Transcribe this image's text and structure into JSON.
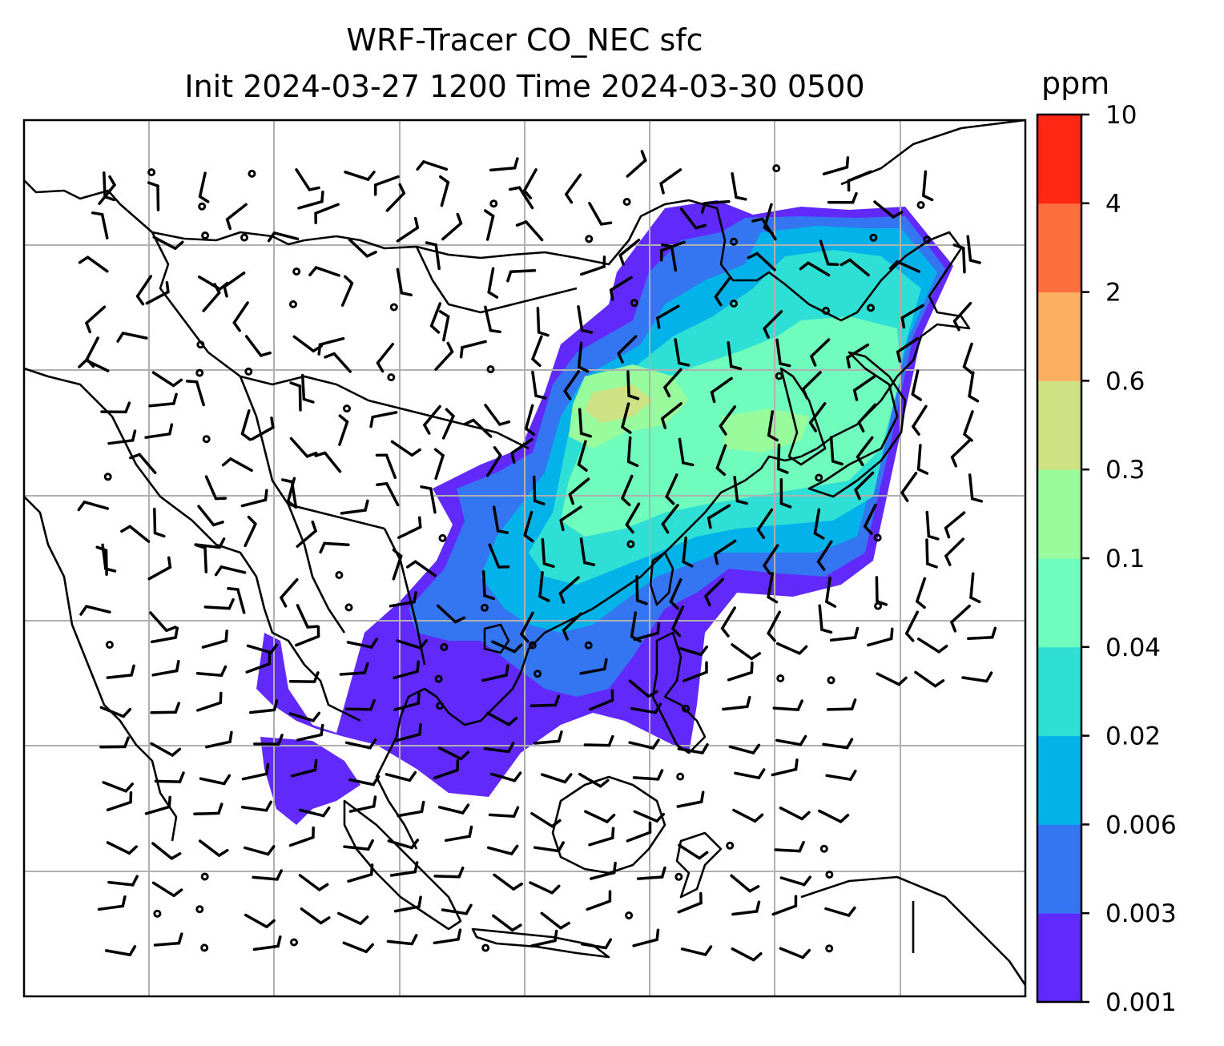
{
  "title": {
    "line1": "WRF-Tracer CO_NEC sfc",
    "line2": "Init 2024-03-27 1200 Time 2024-03-30 0500"
  },
  "colorbar": {
    "unit": "ppm",
    "levels": [
      "0.001",
      "0.003",
      "0.006",
      "0.02",
      "0.04",
      "0.1",
      "0.3",
      "0.6",
      "2",
      "4",
      "10"
    ],
    "colors": [
      "#6229fb",
      "#3476f2",
      "#02b2e9",
      "#2ddfd4",
      "#6ffcbd",
      "#98fc9c",
      "#cee283",
      "#fdb062",
      "#fd6f3c",
      "#fe2713"
    ]
  },
  "map": {
    "background": "#ffffff",
    "gridlines": true,
    "grid_color": "#b0b0b0",
    "coastline_color": "#000000",
    "wind_barb_color": "#000000"
  }
}
